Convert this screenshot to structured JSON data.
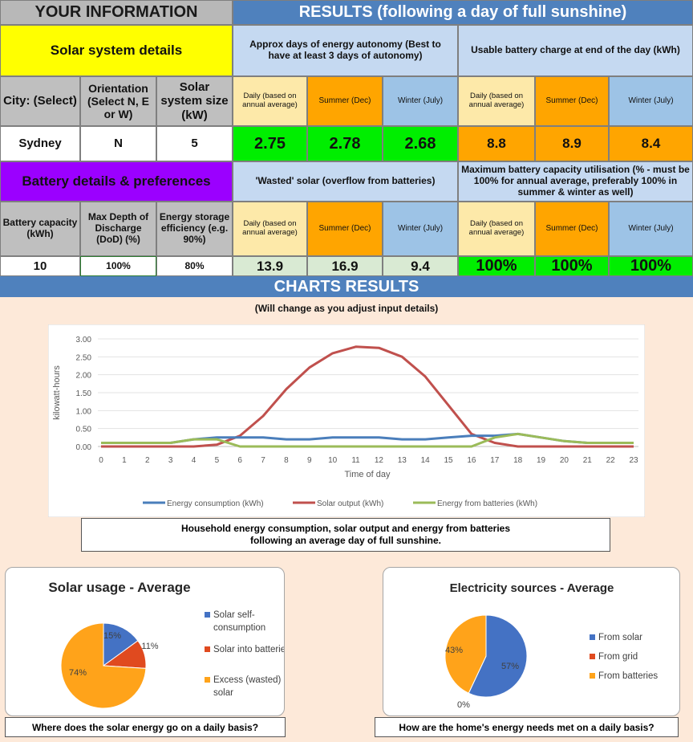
{
  "header": {
    "your_info": "YOUR INFORMATION",
    "results": "RESULTS (following a day of full sunshine)"
  },
  "solar_details": {
    "title": "Solar system details",
    "city_label": "City: (Select)",
    "orientation_label": "Orientation (Select N, E or W)",
    "size_label": "Solar system size (kW)",
    "city": "Sydney",
    "orientation": "N",
    "size": "5"
  },
  "battery_details": {
    "title": "Battery details & preferences",
    "capacity_label": "Battery capacity (kWh)",
    "dod_label": "Max Depth of Discharge (DoD) (%)",
    "efficiency_label": "Energy storage efficiency (e.g. 90%)",
    "capacity": "10",
    "dod": "100%",
    "efficiency": "80%"
  },
  "results": {
    "autonomy_title": "Approx days of energy autonomy (Best to have at least 3 days of autonomy)",
    "charge_title": "Usable battery charge at end of the day (kWh)",
    "wasted_title": "'Wasted' solar (overflow from batteries)",
    "utilisation_title": "Maximum battery capacity utilisation (% - must be 100% for annual average, preferably 100% in summer & winter as well)",
    "col_daily": "Daily (based on annual average)",
    "col_summer": "Summer (Dec)",
    "col_winter": "Winter (July)",
    "autonomy": [
      "2.75",
      "2.78",
      "2.68"
    ],
    "charge": [
      "8.8",
      "8.9",
      "8.4"
    ],
    "wasted": [
      "13.9",
      "16.9",
      "9.4"
    ],
    "utilisation": [
      "100%",
      "100%",
      "100%"
    ]
  },
  "charts_section": {
    "title": "CHARTS RESULTS",
    "subtitle": "(Will change as you adjust input details)",
    "line_caption_1": "Household energy consumption, solar output and energy from batteries",
    "line_caption_2": "following an average day of full sunshine.",
    "pie1_caption": "Where does the solar energy go on a daily basis?",
    "pie2_caption": "How are the home's energy needs met on a daily basis?"
  },
  "colors": {
    "consumption": "#4a7ebb",
    "solar": "#c0504d",
    "batteries": "#9bbb59",
    "pie_blue": "#4472c4",
    "pie_red": "#e04a1f",
    "pie_orange": "#ffa31a"
  },
  "chart_data": [
    {
      "type": "line",
      "title": "",
      "xlabel": "Time of day",
      "ylabel": "kilowatt-hours",
      "x": [
        0,
        1,
        2,
        3,
        4,
        5,
        6,
        7,
        8,
        9,
        10,
        11,
        12,
        13,
        14,
        15,
        16,
        17,
        18,
        19,
        20,
        21,
        22,
        23
      ],
      "ylim": [
        0,
        3.0
      ],
      "yticks": [
        "0.00",
        "0.50",
        "1.00",
        "1.50",
        "2.00",
        "2.50",
        "3.00"
      ],
      "grid": true,
      "legend": "bottom",
      "series": [
        {
          "name": "Energy consumption (kWh)",
          "values": [
            0.1,
            0.1,
            0.1,
            0.1,
            0.2,
            0.25,
            0.25,
            0.25,
            0.2,
            0.2,
            0.25,
            0.25,
            0.25,
            0.2,
            0.2,
            0.25,
            0.3,
            0.3,
            0.35,
            0.25,
            0.15,
            0.1,
            0.1,
            0.1
          ]
        },
        {
          "name": "Solar output (kWh)",
          "values": [
            0,
            0,
            0,
            0,
            0,
            0.05,
            0.3,
            0.85,
            1.6,
            2.2,
            2.6,
            2.78,
            2.75,
            2.5,
            1.95,
            1.15,
            0.35,
            0.1,
            0,
            0,
            0,
            0,
            0,
            0
          ]
        },
        {
          "name": "Energy from batteries (kWh)",
          "values": [
            0.1,
            0.1,
            0.1,
            0.1,
            0.2,
            0.2,
            0,
            0,
            0,
            0,
            0,
            0,
            0,
            0,
            0,
            0,
            0,
            0.25,
            0.35,
            0.25,
            0.15,
            0.1,
            0.1,
            0.1
          ]
        }
      ]
    },
    {
      "type": "pie",
      "title": "Solar usage - Average",
      "labels": [
        "Solar self-consumption",
        "Solar into batteries",
        "Excess (wasted) solar"
      ],
      "values": [
        15,
        11,
        74
      ],
      "data_labels": [
        "15%",
        "11%",
        "74%"
      ]
    },
    {
      "type": "pie",
      "title": "Electricity sources - Average",
      "labels": [
        "From solar",
        "From grid",
        "From batteries"
      ],
      "values": [
        57,
        0,
        43
      ],
      "data_labels": [
        "57%",
        "0%",
        "43%"
      ]
    }
  ]
}
